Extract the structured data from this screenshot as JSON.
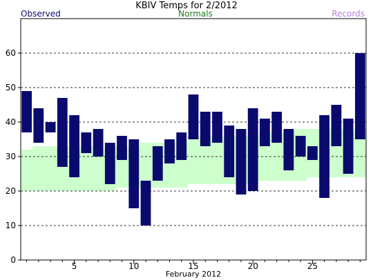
{
  "chart_data": {
    "type": "bar",
    "title": "KBIV Temps for 2/2012",
    "legend": {
      "observed": "Observed",
      "normals": "Normals",
      "records": "Records",
      "placement": "top"
    },
    "xlabel": "February 2012",
    "ylabel": "",
    "ylim": [
      0,
      70
    ],
    "xlim": [
      0.5,
      29.5
    ],
    "yticks": [
      0,
      10,
      20,
      30,
      40,
      50,
      60
    ],
    "xticks": [
      5,
      10,
      15,
      20,
      25
    ],
    "grid": "horizontal dashed",
    "colors": {
      "observed": "#0a0a6e",
      "normals": "#ccffcc",
      "records": "#b57edc",
      "normals_text": "#1b7a1b",
      "grid": "#333333"
    },
    "series": [
      {
        "name": "Observed",
        "days": [
          1,
          2,
          3,
          4,
          5,
          6,
          7,
          8,
          9,
          10,
          11,
          12,
          13,
          14,
          15,
          16,
          17,
          18,
          19,
          20,
          21,
          22,
          23,
          24,
          25,
          26,
          27,
          28,
          29
        ],
        "high": [
          49,
          44,
          40,
          47,
          42,
          37,
          38,
          34,
          36,
          35,
          23,
          33,
          35,
          37,
          48,
          43,
          43,
          39,
          38,
          44,
          41,
          43,
          38,
          36,
          33,
          42,
          45,
          41,
          60
        ],
        "low": [
          37,
          34,
          37,
          27,
          24,
          31,
          30,
          22,
          29,
          15,
          10,
          23,
          28,
          29,
          35,
          33,
          34,
          24,
          19,
          20,
          33,
          34,
          26,
          30,
          29,
          18,
          33,
          25,
          35
        ]
      },
      {
        "name": "Normals",
        "days": [
          1,
          2,
          3,
          4,
          5,
          6,
          7,
          8,
          9,
          10,
          11,
          12,
          13,
          14,
          15,
          16,
          17,
          18,
          19,
          20,
          21,
          22,
          23,
          24,
          25,
          26,
          27,
          28,
          29
        ],
        "high": [
          32,
          33,
          33,
          33,
          33,
          33,
          33,
          33,
          33,
          33,
          34,
          34,
          34,
          34,
          36,
          36,
          36,
          36,
          36,
          36,
          37,
          37,
          37,
          38,
          38,
          38,
          38,
          38,
          38
        ],
        "low": [
          20,
          20,
          20,
          20,
          20,
          20,
          20,
          20,
          21,
          21,
          21,
          21,
          21,
          21,
          22,
          22,
          22,
          22,
          22,
          22,
          23,
          23,
          23,
          23,
          24,
          24,
          24,
          24,
          24
        ]
      }
    ]
  }
}
